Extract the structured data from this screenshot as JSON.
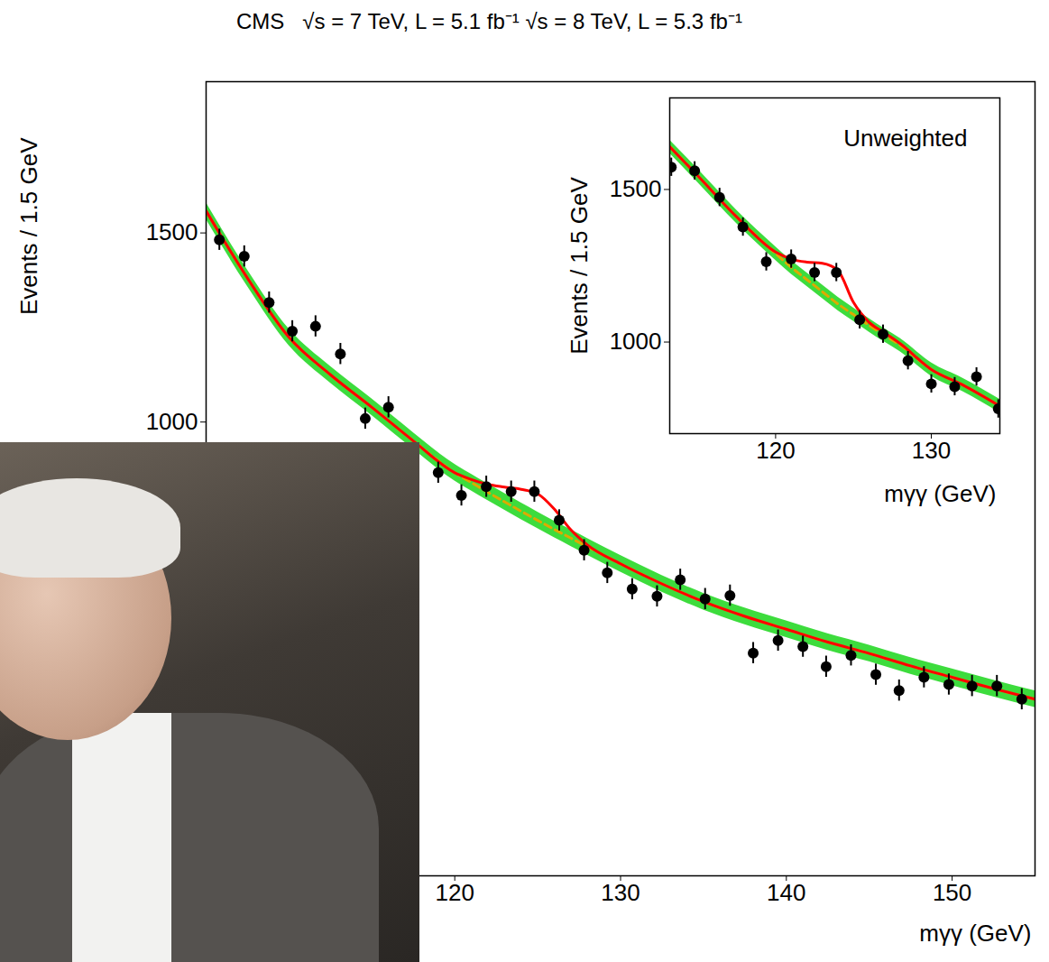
{
  "chart_data": [
    {
      "type": "scatter",
      "title": "CMS   √s = 7 TeV, L = 5.1 fb⁻¹ √s = 8 TeV, L = 5.3 fb⁻¹",
      "x_label": "mγγ (GeV)",
      "y_label": "Events / 1.5 GeV",
      "xlim": [
        105,
        155
      ],
      "ylim": [
        -200,
        1900
      ],
      "xticks": [
        120,
        130,
        140,
        150
      ],
      "yticks": [
        1000,
        1500
      ],
      "series": [
        {
          "type": "area",
          "color": "#3ddc3d",
          "x": [
            105,
            107.5,
            110,
            112.5,
            115,
            117.5,
            120,
            121,
            122,
            123,
            124,
            125,
            126,
            127,
            128,
            130,
            132.5,
            135,
            137.5,
            140,
            142.5,
            145,
            147.5,
            150,
            152.5,
            155
          ],
          "values": [
            1558,
            1380,
            1224,
            1125,
            1039,
            950,
            866,
            840,
            814,
            789,
            764,
            740,
            716,
            693,
            670,
            625,
            572,
            525,
            486,
            452,
            418,
            388,
            355,
            325,
            295,
            267
          ],
          "errors": [
            22,
            22,
            22,
            22,
            22,
            22,
            22,
            22,
            22,
            22,
            22,
            22,
            22,
            22,
            22,
            22,
            22,
            22,
            22,
            22,
            22,
            22,
            22,
            22,
            22,
            22
          ]
        },
        {
          "type": "line",
          "color": "#ddaa00",
          "line_style": "dashed",
          "x": [
            105,
            107.5,
            110,
            112.5,
            115,
            117.5,
            120,
            121,
            122,
            123,
            124,
            125,
            126,
            127,
            128,
            130,
            132.5,
            135,
            137.5,
            140,
            142.5,
            145,
            147.5,
            150,
            152.5,
            155
          ],
          "values": [
            1558,
            1380,
            1224,
            1125,
            1039,
            950,
            866,
            840,
            814,
            789,
            764,
            740,
            716,
            693,
            670,
            625,
            572,
            525,
            486,
            452,
            418,
            388,
            355,
            325,
            295,
            267
          ]
        },
        {
          "type": "line",
          "color": "#ff0000",
          "x": [
            105,
            107.5,
            110,
            112.5,
            115,
            117.5,
            120,
            121,
            122,
            123,
            124,
            125,
            126,
            127,
            128,
            130,
            132.5,
            135,
            137.5,
            140,
            142.5,
            145,
            147.5,
            150,
            152.5,
            155
          ],
          "values": [
            1558,
            1380,
            1224,
            1125,
            1039,
            950,
            866,
            848,
            835,
            828,
            822,
            810,
            770,
            715,
            675,
            625,
            572,
            525,
            486,
            452,
            418,
            388,
            355,
            325,
            295,
            267
          ]
        },
        {
          "type": "scatter",
          "color": "#000000",
          "marker": "circle",
          "x": [
            105.8,
            107.3,
            108.8,
            110.2,
            111.6,
            113.1,
            114.6,
            116.0,
            119.0,
            120.4,
            121.9,
            123.4,
            124.8,
            126.3,
            127.8,
            129.2,
            130.7,
            132.2,
            133.6,
            135.1,
            136.6,
            138.0,
            139.5,
            141.0,
            142.4,
            143.9,
            145.4,
            146.8,
            148.3,
            149.8,
            151.2,
            152.7,
            154.2
          ],
          "values": [
            1482,
            1438,
            1316,
            1240,
            1253,
            1180,
            1009,
            1039,
            866,
            806,
            829,
            816,
            816,
            740,
            661,
            601,
            558,
            539,
            583,
            532,
            541,
            389,
            422,
            406,
            353,
            383,
            332,
            290,
            325,
            306,
            302,
            302,
            267
          ],
          "errors": [
            28,
            28,
            28,
            28,
            28,
            28,
            28,
            28,
            28,
            28,
            28,
            28,
            28,
            28,
            28,
            28,
            28,
            28,
            28,
            28,
            28,
            28,
            28,
            28,
            28,
            28,
            28,
            28,
            28,
            28,
            28,
            28,
            28
          ]
        }
      ]
    },
    {
      "type": "scatter",
      "annotation": "Unweighted",
      "x_label": "mγγ (GeV)",
      "y_label": "Events / 1.5 GeV",
      "xlim": [
        113.2,
        134.4
      ],
      "ylim": [
        700,
        1800
      ],
      "xticks": [
        120,
        130
      ],
      "yticks": [
        1000,
        1500
      ],
      "series": [
        {
          "type": "area",
          "color": "#3ddc3d",
          "x": [
            113.2,
            115,
            117.5,
            120,
            121,
            122,
            123,
            124,
            125,
            126,
            127,
            128,
            130,
            132,
            134.4
          ],
          "values": [
            1640,
            1545,
            1410,
            1290,
            1245,
            1205,
            1165,
            1125,
            1090,
            1055,
            1022,
            990,
            910,
            860,
            790
          ],
          "errors": [
            22,
            22,
            22,
            22,
            22,
            22,
            22,
            22,
            22,
            22,
            22,
            22,
            22,
            22,
            22
          ]
        },
        {
          "type": "line",
          "color": "#ddaa00",
          "line_style": "dashed",
          "x": [
            113.2,
            115,
            117.5,
            120,
            121,
            122,
            123,
            124,
            125,
            126,
            127,
            128,
            130,
            132,
            134.4
          ],
          "values": [
            1640,
            1545,
            1410,
            1290,
            1245,
            1205,
            1165,
            1125,
            1090,
            1055,
            1022,
            990,
            910,
            860,
            790
          ]
        },
        {
          "type": "line",
          "color": "#ff0000",
          "x": [
            113.2,
            115,
            117.5,
            120,
            121,
            122,
            123,
            124,
            125,
            126,
            127,
            128,
            130,
            132,
            134.4
          ],
          "values": [
            1640,
            1545,
            1410,
            1295,
            1272,
            1262,
            1258,
            1235,
            1130,
            1065,
            1030,
            995,
            910,
            860,
            790
          ]
        },
        {
          "type": "scatter",
          "color": "#000000",
          "marker": "circle",
          "x": [
            113.3,
            114.8,
            116.4,
            117.9,
            119.4,
            121.0,
            122.5,
            123.9,
            125.4,
            126.9,
            128.5,
            130.0,
            131.5,
            132.9,
            134.3
          ],
          "values": [
            1573,
            1561,
            1474,
            1377,
            1263,
            1272,
            1228,
            1228,
            1073,
            1026,
            939,
            863,
            854,
            886,
            781
          ],
          "errors": [
            30,
            30,
            30,
            30,
            30,
            30,
            30,
            30,
            30,
            30,
            30,
            30,
            30,
            30,
            30
          ]
        }
      ]
    }
  ]
}
